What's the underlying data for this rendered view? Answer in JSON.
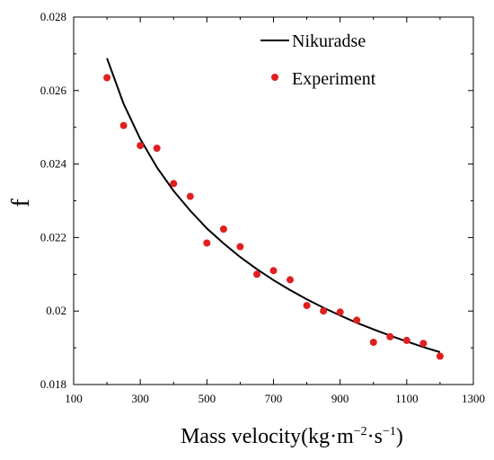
{
  "chart_data": {
    "type": "scatter",
    "xlabel": "Mass velocity(kg·m⁻²·s⁻¹)",
    "xlabel_main": "Mass velocity(kg·m",
    "xlabel_sup1": "−2",
    "xlabel_mid": "·s",
    "xlabel_sup2": "−1",
    "xlabel_end": ")",
    "ylabel": "f",
    "xlim": [
      100,
      1300
    ],
    "ylim": [
      0.018,
      0.028
    ],
    "x_ticks": [
      "100",
      "300",
      "500",
      "700",
      "900",
      "1100",
      "1300"
    ],
    "y_ticks": [
      "0.018",
      "0.02",
      "0.022",
      "0.024",
      "0.026",
      "0.028"
    ],
    "legend_position": "top-right",
    "series": [
      {
        "name": "Nikuradse",
        "kind": "line",
        "color": "#000000",
        "x": [
          200,
          250,
          300,
          350,
          400,
          450,
          500,
          550,
          600,
          650,
          700,
          750,
          800,
          850,
          900,
          950,
          1000,
          1050,
          1100,
          1150,
          1200
        ],
        "y": [
          0.02688,
          0.02564,
          0.02468,
          0.02391,
          0.02327,
          0.02273,
          0.02225,
          0.02184,
          0.02147,
          0.02114,
          0.02084,
          0.02057,
          0.02032,
          0.02009,
          0.01988,
          0.01968,
          0.0195,
          0.01933,
          0.01917,
          0.01902,
          0.01888
        ]
      },
      {
        "name": "Experiment",
        "kind": "scatter",
        "color": "#e02020",
        "x": [
          200,
          250,
          300,
          350,
          400,
          450,
          500,
          550,
          600,
          650,
          700,
          750,
          800,
          850,
          900,
          950,
          1000,
          1050,
          1100,
          1150,
          1200
        ],
        "y": [
          0.02635,
          0.02505,
          0.0245,
          0.02443,
          0.02347,
          0.02312,
          0.02185,
          0.02223,
          0.02175,
          0.021,
          0.0211,
          0.02085,
          0.02015,
          0.02,
          0.01997,
          0.01975,
          0.01915,
          0.0193,
          0.0192,
          0.01912,
          0.01877
        ]
      }
    ]
  }
}
